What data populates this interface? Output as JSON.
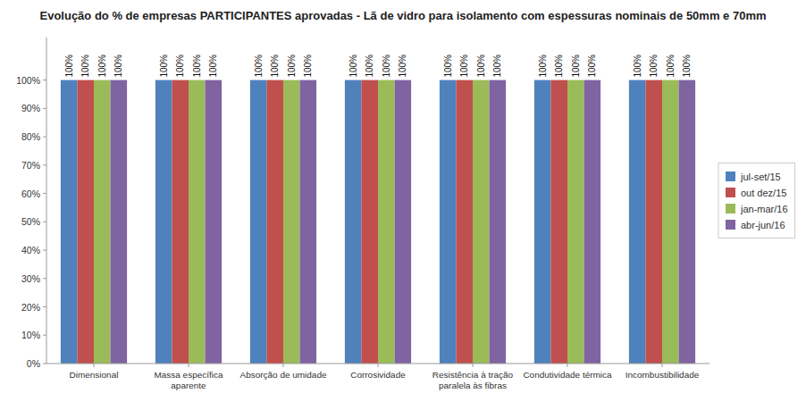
{
  "chart_data": {
    "type": "bar",
    "title": "Evolução do % de empresas PARTICIPANTES aprovadas - Lã de vidro para isolamento com espessuras nominais de 50mm e 70mm",
    "categories": [
      "Dimensional",
      "Massa específica\naparente",
      "Absorção de umidade",
      "Corrosividade",
      "Resistência à tração\nparalela às fibras",
      "Condutividade térmica",
      "Incombustibilidade"
    ],
    "series": [
      {
        "name": "jul-set/15",
        "color": "#4F81BD",
        "values": [
          100,
          100,
          100,
          100,
          100,
          100,
          100
        ],
        "value_labels": [
          "100%",
          "100%",
          "100%",
          "100%",
          "100%",
          "100%",
          "100%"
        ]
      },
      {
        "name": "out dez/15",
        "color": "#C0504D",
        "values": [
          100,
          100,
          100,
          100,
          100,
          100,
          100
        ],
        "value_labels": [
          "100%",
          "100%",
          "100%",
          "100%",
          "100%",
          "100%",
          "100%"
        ]
      },
      {
        "name": "jan-mar/16",
        "color": "#9BBB59",
        "values": [
          100,
          100,
          100,
          100,
          100,
          100,
          100
        ],
        "value_labels": [
          "100%",
          "100%",
          "100%",
          "100%",
          "100%",
          "100%",
          "100%"
        ]
      },
      {
        "name": "abr-jun/16",
        "color": "#8064A2",
        "values": [
          100,
          100,
          100,
          100,
          100,
          100,
          100
        ],
        "value_labels": [
          "100%",
          "100%",
          "100%",
          "100%",
          "100%",
          "100%",
          "100%"
        ]
      }
    ],
    "ylim": [
      0,
      115
    ],
    "yticks": [
      {
        "value": 0,
        "label": "0%"
      },
      {
        "value": 10,
        "label": "10%"
      },
      {
        "value": 20,
        "label": "20%"
      },
      {
        "value": 30,
        "label": "30%"
      },
      {
        "value": 40,
        "label": "40%"
      },
      {
        "value": 50,
        "label": "50%"
      },
      {
        "value": 60,
        "label": "60%"
      },
      {
        "value": 70,
        "label": "70%"
      },
      {
        "value": 80,
        "label": "80%"
      },
      {
        "value": 90,
        "label": "90%"
      },
      {
        "value": 100,
        "label": "100%"
      }
    ],
    "grid": false,
    "legend": "right",
    "data_labels": true
  }
}
